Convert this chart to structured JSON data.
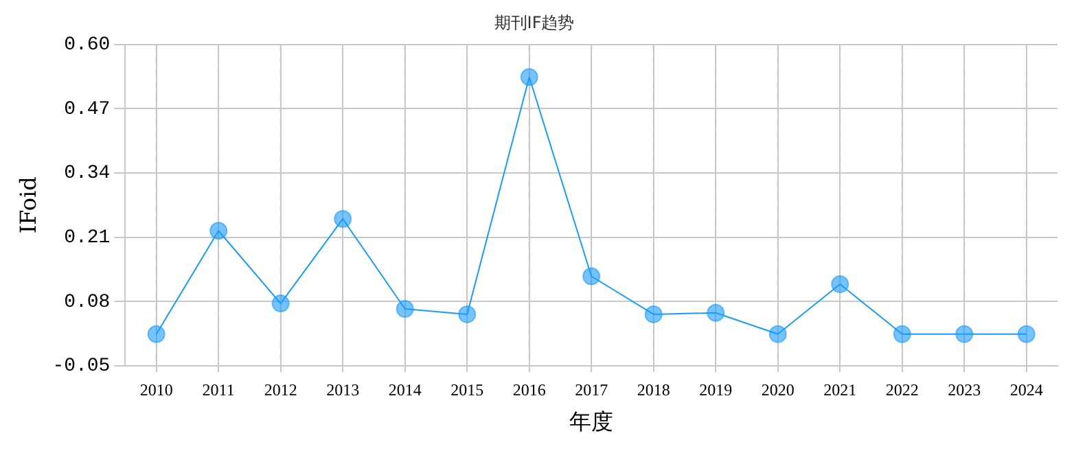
{
  "chart_data": {
    "type": "line",
    "title": "期刊IF趋势",
    "xlabel": "年度",
    "ylabel": "IFoid",
    "categories": [
      "2010",
      "2011",
      "2012",
      "2013",
      "2014",
      "2015",
      "2016",
      "2017",
      "2018",
      "2019",
      "2020",
      "2021",
      "2022",
      "2023",
      "2024"
    ],
    "series": [
      {
        "color": "#1a9bfc",
        "values": [
          0.014,
          0.223,
          0.076,
          0.247,
          0.065,
          0.054,
          0.534,
          0.131,
          0.054,
          0.057,
          0.014,
          0.115,
          0.014,
          0.014,
          0.014
        ]
      }
    ],
    "ylim": [
      -0.05,
      0.6
    ],
    "yticks": [
      {
        "value": -0.05,
        "label": "-0.05"
      },
      {
        "value": 0.08,
        "label": "0.08"
      },
      {
        "value": 0.21,
        "label": "0.21"
      },
      {
        "value": 0.34,
        "label": "0.34"
      },
      {
        "value": 0.47,
        "label": "0.47"
      },
      {
        "value": 0.6,
        "label": "0.60"
      }
    ],
    "grid": true,
    "marker": "circle",
    "line_style": "solid",
    "legend": false
  }
}
